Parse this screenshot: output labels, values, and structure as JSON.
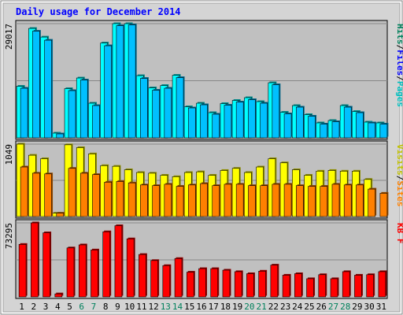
{
  "title": "Daily usage for December 2014",
  "colors": {
    "title": "#0000ff",
    "panel_bg": "#c0c0c0",
    "frame": "#808080",
    "hits_front": "#00ffff",
    "hits_back": "#00805c",
    "files_front": "#00c0ff",
    "sites_front": "#ff8000",
    "visits_front": "#ffff00",
    "kb_front": "#ff0000",
    "weekend_label": "#00805c",
    "weekday_label": "#000000"
  },
  "chart_data": {
    "type": "bar",
    "categories": [
      "1",
      "2",
      "3",
      "4",
      "5",
      "6",
      "7",
      "8",
      "9",
      "10",
      "11",
      "12",
      "13",
      "14",
      "15",
      "16",
      "17",
      "18",
      "19",
      "20",
      "21",
      "22",
      "23",
      "24",
      "25",
      "26",
      "27",
      "28",
      "29",
      "30",
      "31"
    ],
    "weekend_days": [
      "6",
      "7",
      "13",
      "14",
      "20",
      "21",
      "27",
      "28"
    ],
    "panels": [
      {
        "name": "hits-files",
        "y_max_label": "29017",
        "ylim": [
          0,
          29017
        ],
        "side_labels": [
          {
            "text": "Hits",
            "color": "#00805c"
          },
          {
            "text": "/",
            "color": "#000000"
          },
          {
            "text": "Files",
            "color": "#0000ff"
          },
          {
            "text": "/",
            "color": "#000000"
          },
          {
            "text": "Pages",
            "color": "#00c0c0"
          }
        ],
        "series": [
          {
            "name": "Hits",
            "color": "#00ffff",
            "values": [
              13100,
              27800,
              25600,
              1200,
              12500,
              15200,
              8800,
              24100,
              29017,
              29017,
              15800,
              12700,
              13300,
              15900,
              7900,
              8800,
              6400,
              8700,
              9500,
              10200,
              9200,
              14000,
              6500,
              8200,
              5900,
              3800,
              4400,
              8200,
              6700,
              4000,
              3800
            ]
          },
          {
            "name": "Files",
            "color": "#00c0ff",
            "values": [
              12600,
              27100,
              24800,
              1000,
              12000,
              14700,
              8200,
              23400,
              28500,
              28700,
              15100,
              12100,
              12600,
              15300,
              7600,
              8400,
              6000,
              8300,
              9100,
              9700,
              8800,
              13500,
              6100,
              7800,
              5500,
              3500,
              4100,
              7800,
              6400,
              3800,
              3500
            ]
          }
        ]
      },
      {
        "name": "visits-sites",
        "y_max_label": "1049",
        "ylim": [
          0,
          1049
        ],
        "side_labels": [
          {
            "text": "Visits",
            "color": "#c0c000"
          },
          {
            "text": "/",
            "color": "#000000"
          },
          {
            "text": "Sites",
            "color": "#ff8000"
          }
        ],
        "series": [
          {
            "name": "Visits",
            "color": "#ffff00",
            "values": [
              1049,
              888,
              838,
              49,
              1039,
              998,
              908,
              738,
              728,
              678,
              638,
              628,
              598,
              578,
              638,
              648,
              598,
              668,
              698,
              638,
              718,
              838,
              778,
              678,
              598,
              658,
              668,
              658,
              658,
              538,
              0
            ]
          },
          {
            "name": "Sites",
            "color": "#ff8000",
            "values": [
              718,
              628,
              618,
              49,
              698,
              628,
              608,
              498,
              508,
              488,
              458,
              448,
              468,
              438,
              458,
              478,
              448,
              468,
              468,
              448,
              448,
              468,
              468,
              448,
              438,
              438,
              468,
              458,
              458,
              398,
              338
            ]
          }
        ]
      },
      {
        "name": "kb",
        "y_max_label": "73295",
        "ylim": [
          0,
          73295
        ],
        "side_labels": [
          {
            "text": "KB F",
            "color": "#ff0000"
          }
        ],
        "series": [
          {
            "name": "KB F",
            "color": "#ff0000",
            "values": [
              52000,
              73295,
              63500,
              3000,
              48500,
              51500,
              46500,
              64500,
              70500,
              57500,
              42000,
              36000,
              31000,
              38000,
              24500,
              28000,
              28000,
              26500,
              25000,
              23000,
              25500,
              31500,
              21500,
              23000,
              18000,
              22000,
              18000,
              25000,
              21500,
              22000,
              25000
            ]
          }
        ]
      }
    ]
  }
}
